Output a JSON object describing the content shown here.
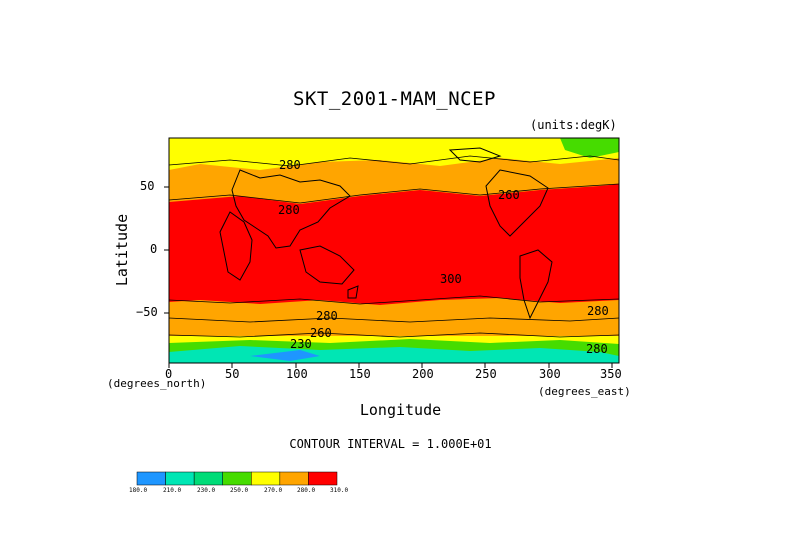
{
  "title": "SKT_2001-MAM_NCEP",
  "units": "(units:degK)",
  "axes": {
    "ylabel": "Latitude",
    "xlabel": "Longitude",
    "x_ticks": [
      "0",
      "50",
      "100",
      "150",
      "200",
      "250",
      "300",
      "350"
    ],
    "y_ticks": [
      "50",
      "0",
      "−50"
    ],
    "x_sub_left": "(degrees_north)",
    "x_sub_right": "(degrees_east)"
  },
  "contour_labels": [
    "280",
    "280",
    "300",
    "280",
    "280",
    "260",
    "260",
    "280",
    "230"
  ],
  "contour_interval": "CONTOUR INTERVAL = 1.000E+01",
  "colorbar": {
    "labels": [
      "180.0",
      "210.0",
      "230.0",
      "250.0",
      "270.0",
      "280.0",
      "310.0"
    ],
    "colors": [
      "#1e96ff",
      "#00e6b4",
      "#00dc78",
      "#46dc00",
      "#ffff00",
      "#ffa500",
      "#ff0000"
    ]
  },
  "colors": {
    "polar": "#00e6b4",
    "cold": "#46dc00",
    "cool": "#ffff00",
    "mid": "#ffa500",
    "warm": "#ff0000"
  }
}
